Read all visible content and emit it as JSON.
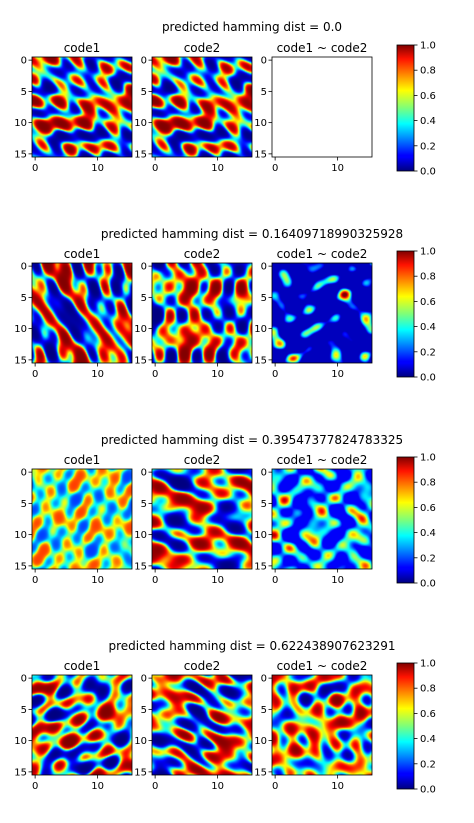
{
  "chart_data": [
    {
      "type": "heatmap",
      "title": "predicted hamming dist = 0.0",
      "panels": [
        {
          "title": "code1",
          "kind": "pattern",
          "seed": 11
        },
        {
          "title": "code2",
          "kind": "pattern",
          "seed": 11
        },
        {
          "title": "code1 ~ code2",
          "kind": "blank",
          "seed": 0
        }
      ],
      "xticks": [
        0,
        10
      ],
      "yticks": [
        0,
        5,
        10,
        15
      ],
      "colorbar": {
        "range": [
          0,
          1
        ],
        "ticks": [
          "0.0",
          "0.2",
          "0.4",
          "0.6",
          "0.8",
          "1.0"
        ]
      }
    },
    {
      "type": "heatmap",
      "title": "predicted hamming dist = 0.16409718990325928",
      "panels": [
        {
          "title": "code1",
          "kind": "pattern",
          "seed": 23
        },
        {
          "title": "code2",
          "kind": "pattern",
          "seed": 29
        },
        {
          "title": "code1 ~ code2",
          "kind": "sparse",
          "seed": 31
        }
      ],
      "xticks": [
        0,
        10
      ],
      "yticks": [
        0,
        5,
        10,
        15
      ],
      "colorbar": {
        "range": [
          0,
          1
        ],
        "ticks": [
          "0.0",
          "0.2",
          "0.4",
          "0.6",
          "0.8",
          "1.0"
        ]
      }
    },
    {
      "type": "heatmap",
      "title": "predicted hamming dist = 0.39547377824783325",
      "panels": [
        {
          "title": "code1",
          "kind": "mid",
          "seed": 41
        },
        {
          "title": "code2",
          "kind": "pattern",
          "seed": 43
        },
        {
          "title": "code1 ~ code2",
          "kind": "medium",
          "seed": 47
        }
      ],
      "xticks": [
        0,
        10
      ],
      "yticks": [
        0,
        5,
        10,
        15
      ],
      "colorbar": {
        "range": [
          0,
          1
        ],
        "ticks": [
          "0.0",
          "0.2",
          "0.4",
          "0.6",
          "0.8",
          "1.0"
        ]
      }
    },
    {
      "type": "heatmap",
      "title": "predicted hamming dist = 0.622438907623291",
      "panels": [
        {
          "title": "code1",
          "kind": "pattern",
          "seed": 53
        },
        {
          "title": "code2",
          "kind": "pattern",
          "seed": 59
        },
        {
          "title": "code1 ~ code2",
          "kind": "dense",
          "seed": 61
        }
      ],
      "xticks": [
        0,
        10
      ],
      "yticks": [
        0,
        5,
        10,
        15
      ],
      "colorbar": {
        "range": [
          0,
          1
        ],
        "ticks": [
          "0.0",
          "0.2",
          "0.4",
          "0.6",
          "0.8",
          "1.0"
        ]
      }
    }
  ]
}
